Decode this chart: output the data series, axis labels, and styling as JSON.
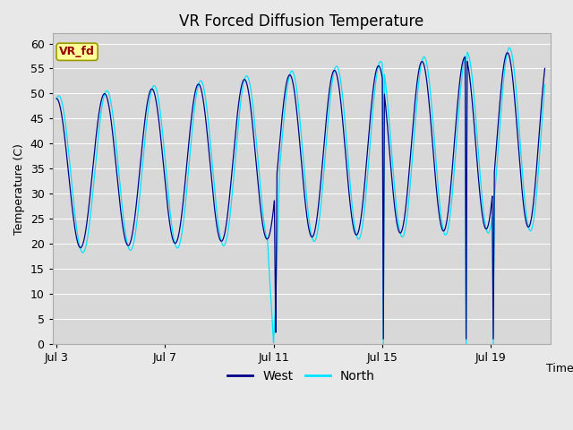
{
  "title": "VR Forced Diffusion Temperature",
  "xlabel": "Time",
  "ylabel": "Temperature (C)",
  "xlim": [
    2.85,
    21.2
  ],
  "ylim": [
    0,
    62
  ],
  "yticks": [
    0,
    5,
    10,
    15,
    20,
    25,
    30,
    35,
    40,
    45,
    50,
    55,
    60
  ],
  "xtick_labels": [
    "Jul 3",
    "Jul 7",
    "Jul 11",
    "Jul 15",
    "Jul 19"
  ],
  "xtick_positions": [
    3,
    7,
    11,
    15,
    19
  ],
  "west_color": "#00008B",
  "north_color": "#00E5FF",
  "fig_bg": "#E8E8E8",
  "plot_bg": "#D8D8D8",
  "grid_color": "#FFFFFF",
  "annotation_text": "VR_fd",
  "annotation_bg": "#FFFF99",
  "annotation_border": "#999900",
  "annotation_text_color": "#990000",
  "legend_west_label": "West",
  "legend_north_label": "North",
  "title_fontsize": 12,
  "axis_label_fontsize": 9,
  "tick_fontsize": 9
}
